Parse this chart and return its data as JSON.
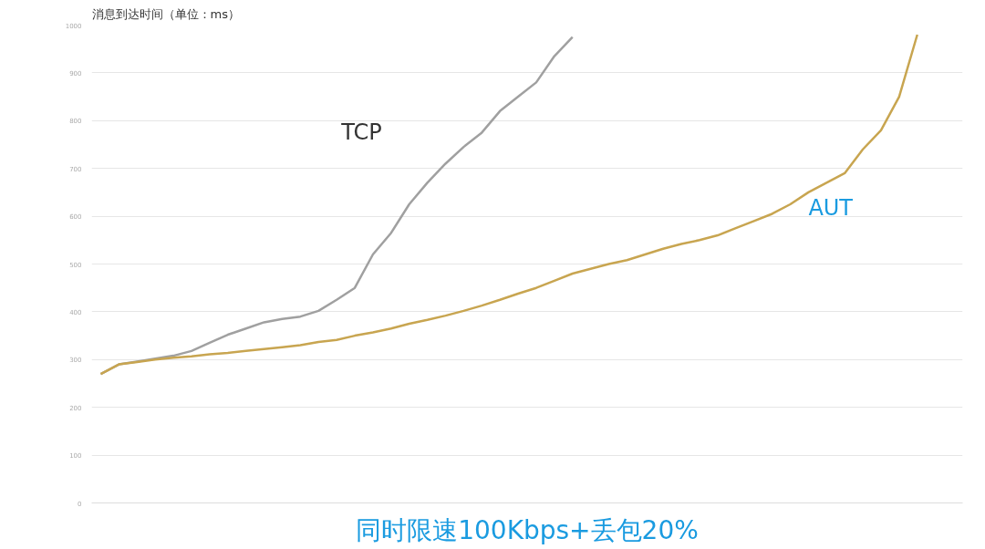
{
  "chart_data": {
    "type": "line",
    "title": "消息到达时间（单位：ms）",
    "annotations": [
      "同时限速100Kbps+丢包20%"
    ],
    "categories": [
      null,
      null,
      null,
      null,
      null,
      null,
      null,
      null,
      null,
      null,
      null,
      null,
      null,
      null,
      null,
      null,
      null,
      null,
      null,
      null,
      null,
      null,
      null,
      null,
      null,
      null,
      null,
      null,
      null,
      null,
      null,
      null,
      null,
      null,
      null,
      null,
      null,
      null,
      null,
      null,
      null,
      null,
      null,
      null,
      null,
      null,
      null,
      null
    ],
    "series": [
      {
        "name": "TCP",
        "color": "#a0a0a0",
        "values": [
          270,
          290,
          296,
          302,
          308,
          318,
          335,
          352,
          365,
          378,
          385,
          390,
          402,
          425,
          450,
          520,
          565,
          625,
          670,
          710,
          745,
          775,
          820,
          850,
          880,
          935,
          975,
          null,
          null,
          null,
          null,
          null,
          null,
          null,
          null,
          null,
          null,
          null,
          null,
          null,
          null,
          null,
          null,
          null,
          null,
          null,
          null,
          null
        ]
      },
      {
        "name": "AUT",
        "color": "#c8a550",
        "values": [
          270,
          290,
          295,
          300,
          304,
          307,
          311,
          314,
          318,
          322,
          326,
          330,
          337,
          341,
          350,
          357,
          365,
          375,
          383,
          392,
          402,
          413,
          425,
          438,
          450,
          465,
          480,
          490,
          500,
          508,
          520,
          532,
          542,
          550,
          560,
          575,
          590,
          605,
          625,
          650,
          670,
          690,
          740,
          780,
          850,
          980,
          null,
          null
        ]
      }
    ],
    "ylim": [
      0,
      1000
    ],
    "yticks": [
      0,
      100,
      200,
      300,
      400,
      500,
      600,
      700,
      800,
      900,
      1000
    ],
    "grid": "y",
    "tick_labels": "y",
    "line_style": "solid",
    "marker": "none"
  }
}
